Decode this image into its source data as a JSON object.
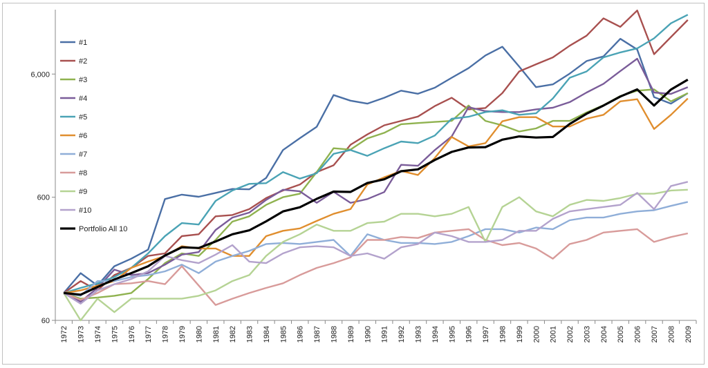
{
  "chart_data": {
    "type": "line",
    "title": "",
    "xlabel": "",
    "ylabel": "",
    "y_scale": "log",
    "ylim": [
      60,
      20000
    ],
    "yticks": [
      60,
      600,
      6000
    ],
    "ytick_labels": [
      "60",
      "600",
      "6,000"
    ],
    "grid": false,
    "legend_position": "left",
    "x": [
      1972,
      1973,
      1974,
      1975,
      1976,
      1977,
      1978,
      1979,
      1980,
      1981,
      1982,
      1983,
      1984,
      1985,
      1986,
      1987,
      1988,
      1989,
      1990,
      1991,
      1992,
      1993,
      1994,
      1995,
      1996,
      1997,
      1998,
      1999,
      2000,
      2001,
      2002,
      2003,
      2004,
      2005,
      2006,
      2007,
      2008,
      2009
    ],
    "series": [
      {
        "name": "#1",
        "color": "#4a6fa5",
        "values": [
          100,
          145,
          115,
          165,
          190,
          225,
          580,
          630,
          605,
          650,
          700,
          695,
          860,
          1450,
          1810,
          2240,
          4050,
          3650,
          3450,
          3850,
          4400,
          4150,
          4650,
          5600,
          6700,
          8500,
          10000,
          6900,
          4700,
          4950,
          6050,
          7650,
          8350,
          11600,
          9500,
          3900,
          3450,
          4200
        ]
      },
      {
        "name": "#2",
        "color": "#a8504f",
        "values": [
          100,
          125,
          105,
          140,
          160,
          200,
          210,
          290,
          300,
          420,
          430,
          480,
          590,
          680,
          760,
          960,
          1090,
          1600,
          1940,
          2300,
          2500,
          2710,
          3300,
          3850,
          3100,
          3180,
          4200,
          6300,
          7200,
          8200,
          10200,
          12300,
          17000,
          14500,
          19700,
          8700,
          12000,
          16500
        ]
      },
      {
        "name": "#3",
        "color": "#8fb24f",
        "values": [
          100,
          90,
          92,
          95,
          100,
          130,
          175,
          210,
          200,
          270,
          380,
          420,
          520,
          600,
          640,
          960,
          1500,
          1460,
          1800,
          2000,
          2350,
          2400,
          2450,
          2500,
          3330,
          2500,
          2300,
          2050,
          2170,
          2500,
          2500,
          2930,
          3350,
          3980,
          4400,
          4500,
          3600,
          4200
        ]
      },
      {
        "name": "#4",
        "color": "#7a5c99",
        "values": [
          100,
          85,
          110,
          155,
          140,
          145,
          170,
          205,
          215,
          325,
          410,
          450,
          570,
          690,
          670,
          540,
          665,
          540,
          580,
          660,
          1100,
          1080,
          1450,
          1870,
          3230,
          3000,
          2950,
          2950,
          3100,
          3200,
          3550,
          4250,
          5000,
          6350,
          8000,
          4250,
          4140,
          4700
        ]
      },
      {
        "name": "#5",
        "color": "#4aa3b5",
        "values": [
          100,
          110,
          120,
          135,
          160,
          210,
          290,
          370,
          360,
          560,
          680,
          770,
          780,
          960,
          850,
          940,
          1350,
          1450,
          1300,
          1500,
          1700,
          1650,
          1900,
          2600,
          2700,
          2950,
          3050,
          2800,
          2880,
          3800,
          5600,
          6300,
          8200,
          9000,
          9700,
          11700,
          15500,
          18200
        ]
      },
      {
        "name": "#6",
        "color": "#e08e2e",
        "values": [
          100,
          105,
          115,
          125,
          160,
          180,
          200,
          240,
          230,
          230,
          200,
          200,
          290,
          320,
          335,
          385,
          440,
          480,
          760,
          870,
          980,
          910,
          1250,
          1850,
          1550,
          1650,
          2480,
          2680,
          2680,
          2250,
          2250,
          2600,
          2800,
          3600,
          3750,
          2150,
          2800,
          3800
        ]
      },
      {
        "name": "#7",
        "color": "#8faed8",
        "values": [
          100,
          95,
          125,
          125,
          135,
          140,
          150,
          170,
          145,
          180,
          200,
          220,
          250,
          255,
          250,
          260,
          270,
          200,
          300,
          270,
          255,
          255,
          250,
          260,
          290,
          330,
          330,
          310,
          340,
          330,
          390,
          410,
          410,
          440,
          460,
          470,
          510,
          550
        ]
      },
      {
        "name": "#8",
        "color": "#d89b9a",
        "values": [
          100,
          88,
          100,
          118,
          120,
          125,
          118,
          165,
          115,
          80,
          90,
          100,
          110,
          120,
          140,
          160,
          175,
          195,
          270,
          270,
          285,
          280,
          310,
          320,
          330,
          270,
          245,
          255,
          230,
          190,
          250,
          270,
          310,
          320,
          330,
          260,
          285,
          305
        ]
      },
      {
        "name": "#9",
        "color": "#b5d394",
        "values": [
          100,
          60,
          90,
          70,
          90,
          90,
          90,
          90,
          95,
          105,
          125,
          140,
          200,
          260,
          300,
          360,
          320,
          320,
          370,
          380,
          440,
          440,
          420,
          440,
          500,
          260,
          500,
          600,
          460,
          420,
          520,
          570,
          560,
          590,
          640,
          640,
          680,
          690
        ]
      },
      {
        "name": "#10",
        "color": "#b3a2cc",
        "values": [
          100,
          82,
          105,
          118,
          130,
          150,
          200,
          185,
          175,
          205,
          245,
          180,
          175,
          210,
          235,
          240,
          235,
          200,
          210,
          190,
          235,
          250,
          310,
          290,
          260,
          260,
          270,
          320,
          320,
          400,
          460,
          480,
          500,
          520,
          650,
          480,
          740,
          800
        ]
      },
      {
        "name": "Portfolio All 10",
        "color": "#000000",
        "values": [
          100,
          97,
          112,
          129,
          145,
          165,
          202,
          235,
          232,
          262,
          300,
          323,
          382,
          460,
          497,
          582,
          666,
          662,
          782,
          839,
          975,
          1010,
          1203,
          1400,
          1520,
          1530,
          1760,
          1870,
          1830,
          1850,
          2360,
          2860,
          3330,
          3940,
          4500,
          3330,
          4490,
          5400
        ]
      }
    ]
  }
}
